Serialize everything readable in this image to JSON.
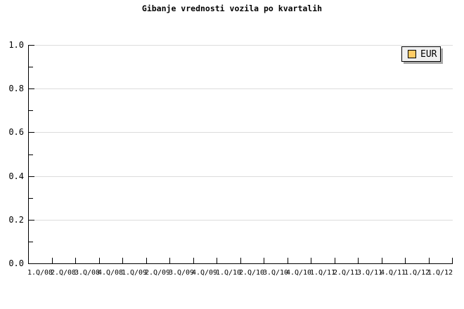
{
  "chart_data": {
    "type": "bar",
    "title": "Gibanje vrednosti vozila po kvartalih",
    "categories": [
      "1.Q/08",
      "2.Q/08",
      "3.Q/08",
      "4.Q/08",
      "1.Q/09",
      "2.Q/09",
      "3.Q/09",
      "4.Q/09",
      "1.Q/10",
      "2.Q/10",
      "3.Q/10",
      "4.Q/10",
      "1.Q/11",
      "2.Q/11",
      "3.Q/11",
      "4.Q/11",
      "1.Q/12",
      "1.Q/12"
    ],
    "series": [
      {
        "name": "EUR",
        "color": "#ffcc66",
        "values": []
      }
    ],
    "xlabel": "",
    "ylabel": "",
    "ylim": [
      0.0,
      1.0
    ],
    "y_major_ticks": [
      0.0,
      0.2,
      0.4,
      0.6,
      0.8,
      1.0
    ],
    "y_tick_labels": [
      "0.0",
      "0.2",
      "0.4",
      "0.6",
      "0.8",
      "1.0"
    ],
    "y_minor_step": 0.1,
    "grid": "horizontal-only",
    "legend_position": "top-right",
    "plot_is_empty": true
  },
  "colors": {
    "background": "#ffffff",
    "axis": "#000000",
    "gridline": "#dcdcdc",
    "legend_background": "#f0f0f0",
    "legend_border": "#000000",
    "legend_shadow": "#a8a8a8",
    "series_eur": "#ffcc66"
  }
}
